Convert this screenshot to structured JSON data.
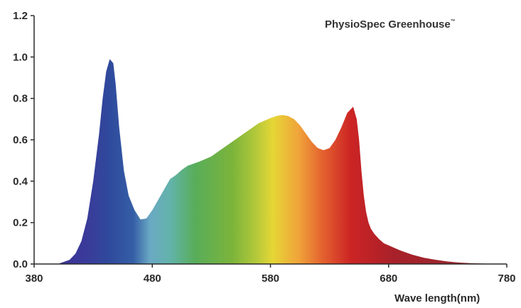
{
  "chart_data": {
    "type": "area",
    "title": "PhysioSpec Greenhouse",
    "title_mark": "™",
    "xlabel": "Wave length(nm)",
    "ylabel": "",
    "xlim": [
      380,
      780
    ],
    "ylim": [
      0,
      1.2
    ],
    "x_ticks": [
      "380",
      "480",
      "580",
      "680",
      "780"
    ],
    "y_ticks": [
      "0.0",
      "0.2",
      "0.4",
      "0.6",
      "0.8",
      "1.0",
      "1.2"
    ],
    "grid": false,
    "legend": "none",
    "fill": "visible-spectrum gradient (violet to deep red)",
    "series": [
      {
        "x": [
          380,
          400,
          410,
          415,
          420,
          425,
          430,
          435,
          438,
          441,
          444,
          447,
          449,
          452,
          456,
          460,
          465,
          470,
          475,
          480,
          485,
          490,
          495,
          500,
          505,
          510,
          520,
          530,
          540,
          550,
          560,
          570,
          580,
          585,
          590,
          595,
          600,
          605,
          610,
          615,
          620,
          625,
          630,
          635,
          640,
          645,
          650,
          653,
          655,
          657,
          659,
          661,
          663,
          665,
          668,
          672,
          676,
          680,
          690,
          700,
          710,
          720,
          730,
          740,
          750,
          760,
          770,
          780
        ],
        "y": [
          0.0,
          0.0,
          0.02,
          0.05,
          0.11,
          0.22,
          0.4,
          0.63,
          0.8,
          0.93,
          0.99,
          0.97,
          0.87,
          0.66,
          0.45,
          0.33,
          0.26,
          0.215,
          0.22,
          0.26,
          0.31,
          0.36,
          0.41,
          0.43,
          0.455,
          0.475,
          0.495,
          0.52,
          0.56,
          0.6,
          0.64,
          0.68,
          0.705,
          0.715,
          0.72,
          0.715,
          0.7,
          0.67,
          0.63,
          0.59,
          0.56,
          0.55,
          0.56,
          0.6,
          0.66,
          0.73,
          0.76,
          0.7,
          0.6,
          0.45,
          0.33,
          0.25,
          0.2,
          0.17,
          0.145,
          0.12,
          0.1,
          0.09,
          0.065,
          0.045,
          0.03,
          0.02,
          0.012,
          0.007,
          0.004,
          0.002,
          0.001,
          0.0
        ]
      }
    ]
  }
}
